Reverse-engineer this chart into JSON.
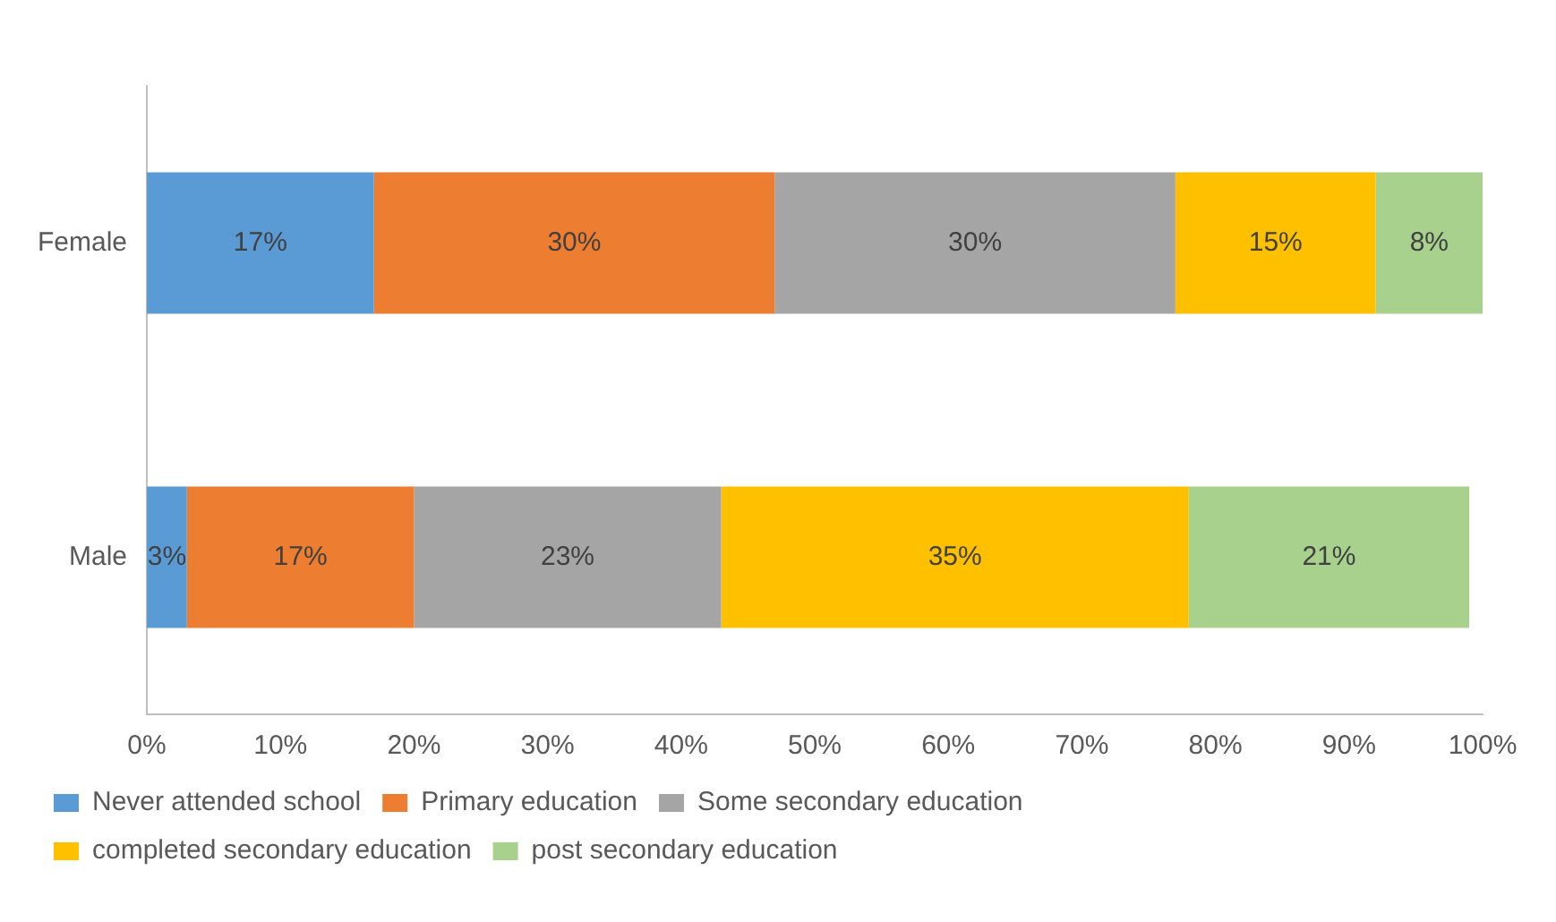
{
  "chart_data": {
    "type": "bar",
    "orientation": "horizontal",
    "stacked": true,
    "categories": [
      "Female",
      "Male"
    ],
    "series": [
      {
        "name": "Never attended school",
        "color": "#5b9bd5",
        "values": [
          17,
          3
        ],
        "value_labels": [
          "17%",
          "3%"
        ]
      },
      {
        "name": "Primary education",
        "color": "#ed7d31",
        "values": [
          30,
          17
        ],
        "value_labels": [
          "30%",
          "17%"
        ]
      },
      {
        "name": "Some secondary education",
        "color": "#a5a5a5",
        "values": [
          30,
          23
        ],
        "value_labels": [
          "30%",
          "23%"
        ]
      },
      {
        "name": "completed secondary education",
        "color": "#ffc000",
        "values": [
          15,
          35
        ],
        "value_labels": [
          "15%",
          "35%"
        ]
      },
      {
        "name": "post secondary education",
        "color": "#a9d18e",
        "values": [
          8,
          21
        ],
        "value_labels": [
          "8%",
          "21%"
        ]
      }
    ],
    "xlim": [
      0,
      100
    ],
    "xticks": [
      {
        "value": 0,
        "label": "0%"
      },
      {
        "value": 10,
        "label": "10%"
      },
      {
        "value": 20,
        "label": "20%"
      },
      {
        "value": 30,
        "label": "30%"
      },
      {
        "value": 40,
        "label": "40%"
      },
      {
        "value": 50,
        "label": "50%"
      },
      {
        "value": 60,
        "label": "60%"
      },
      {
        "value": 70,
        "label": "70%"
      },
      {
        "value": 80,
        "label": "80%"
      },
      {
        "value": 90,
        "label": "90%"
      },
      {
        "value": 100,
        "label": "100%"
      }
    ],
    "grid": false,
    "legend": "bottom"
  }
}
